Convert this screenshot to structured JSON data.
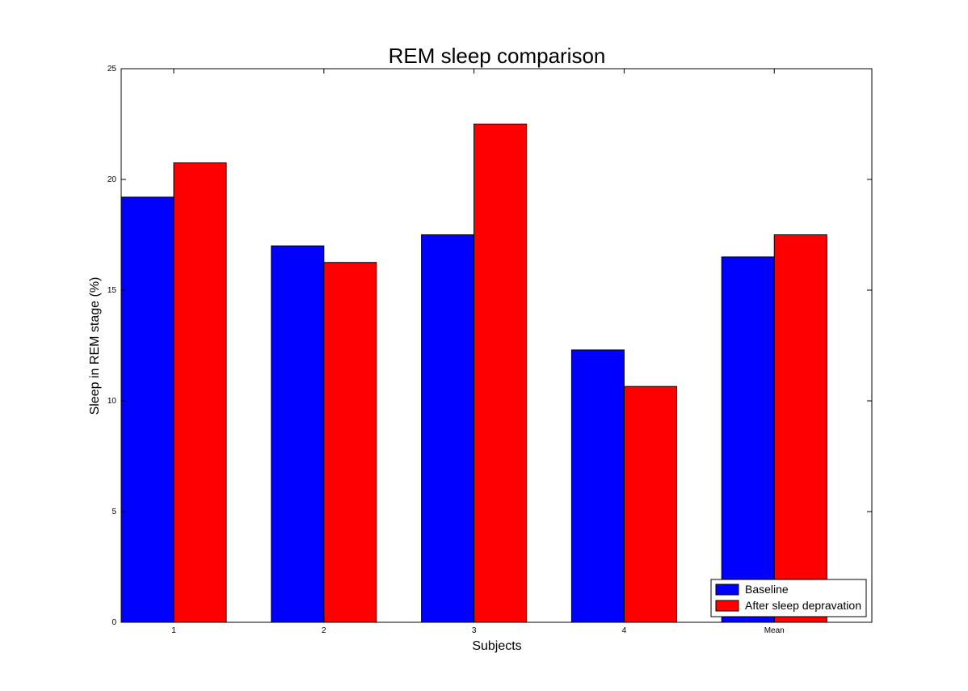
{
  "chart_data": {
    "type": "bar",
    "title": "REM sleep comparison",
    "xlabel": "Subjects",
    "ylabel": "Sleep in REM stage (%)",
    "categories": [
      "1",
      "2",
      "3",
      "4",
      "Mean"
    ],
    "series": [
      {
        "name": "Baseline",
        "color": "#0000ff",
        "values": [
          19.2,
          17.0,
          17.5,
          12.3,
          16.5
        ]
      },
      {
        "name": "After sleep depravation",
        "color": "#ff0000",
        "values": [
          20.75,
          16.25,
          22.5,
          10.65,
          17.5
        ]
      }
    ],
    "ylim": [
      0,
      25
    ],
    "yticks": [
      "0",
      "5",
      "10",
      "15",
      "20",
      "25"
    ],
    "grid": false,
    "legend_position": "lower-right"
  }
}
